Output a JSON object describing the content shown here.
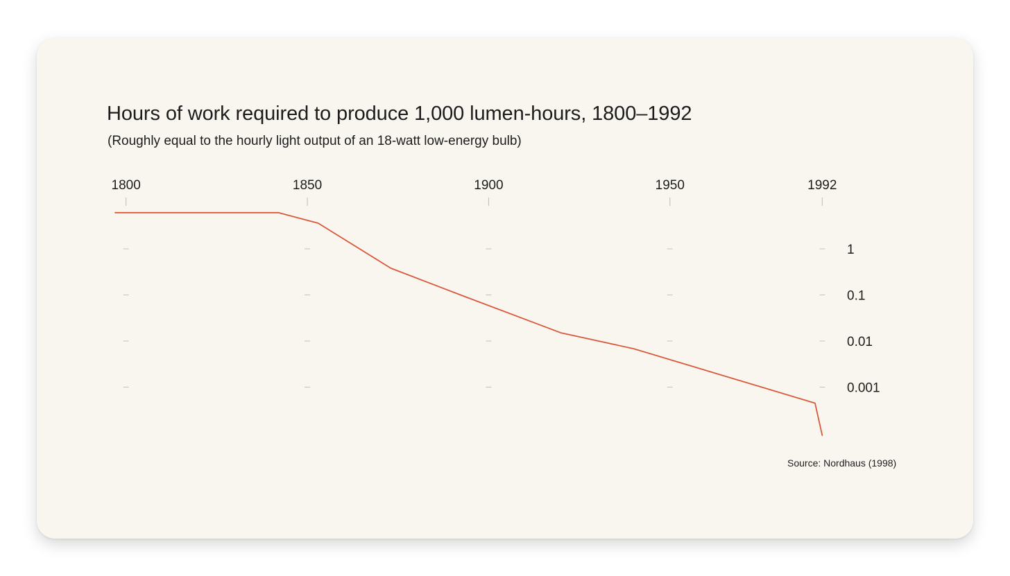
{
  "chart_data": {
    "type": "line",
    "title": "Hours of work required to produce 1,000 lumen-hours, 1800–1992",
    "subtitle": "(Roughly equal to the hourly light output of an 18-watt low-energy bulb)",
    "source": "Source: Nordhaus (1998)",
    "x_scale": "linear",
    "y_scale": "log",
    "x_ticks": [
      1800,
      1850,
      1900,
      1950,
      1992
    ],
    "x_tick_labels": [
      "1800",
      "1850",
      "1900",
      "1950",
      "1992"
    ],
    "y_ticks": [
      1,
      0.1,
      0.01,
      0.001
    ],
    "y_tick_labels": [
      "1",
      "0.1",
      "0.01",
      "0.001"
    ],
    "xlim": [
      1797,
      1995
    ],
    "grid": "tick marks only",
    "line_color": "#d9583a",
    "series": [
      {
        "x": [
          1797,
          1842,
          1853,
          1873,
          1893,
          1920,
          1940,
          1990,
          1992
        ],
        "y": [
          6.1,
          6.1,
          3.6,
          0.38,
          0.095,
          0.015,
          0.0068,
          0.00045,
          9e-05
        ]
      }
    ]
  }
}
